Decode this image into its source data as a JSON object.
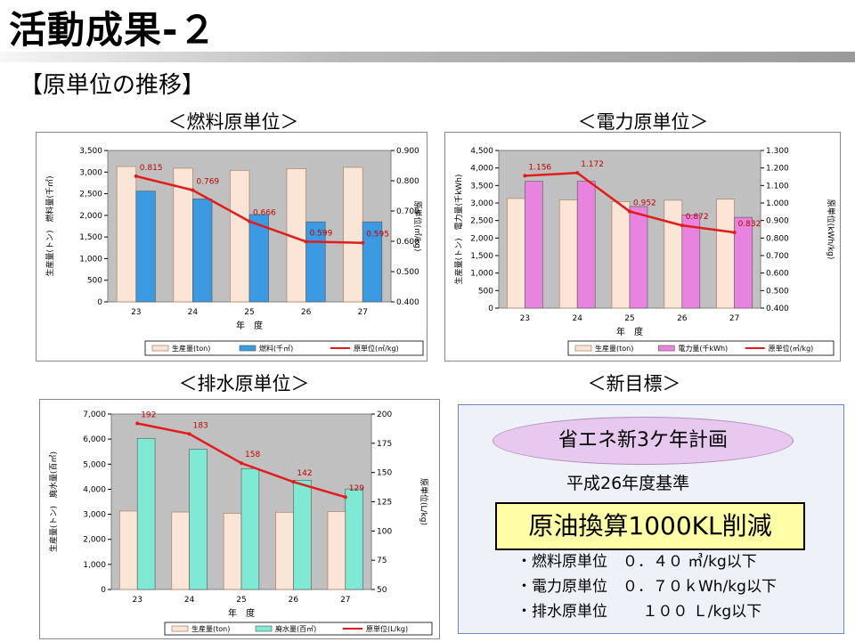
{
  "page": {
    "title": "活動成果-２",
    "subtitle": "【原単位の推移】"
  },
  "headings": {
    "fuel": "＜燃料原単位＞",
    "power": "＜電力原単位＞",
    "water": "＜排水原単位＞",
    "goal": "＜新目標＞"
  },
  "goal": {
    "plan": "省エネ新3ケ年計画",
    "baseline": "平成26年度基準",
    "target": "原油換算1000KL削減",
    "items": [
      "・燃料原単位　０．４０ ㎥/kg以下",
      "・電力原単位　０．７０ｋWh/kg以下",
      "・排水原単位　 　１００ Ｌ/kg以下"
    ]
  },
  "colors": {
    "production_bar": "#fbe5d6",
    "fuel_bar": "#3b9ae1",
    "power_bar": "#e884e0",
    "water_bar": "#7fe9d4",
    "unit_line": "#e31b1b"
  },
  "chart_data": [
    {
      "id": "fuel",
      "type": "bar",
      "categories": [
        "23",
        "24",
        "25",
        "26",
        "27"
      ],
      "xlabel": "年　度",
      "ylabel": "生産量(トン)　燃料量(千㎥)",
      "y2label": "原単位(㎥/kg)",
      "ylim": [
        0,
        3500
      ],
      "yticks": [
        0,
        500,
        1000,
        1500,
        2000,
        2500,
        3000,
        3500
      ],
      "ytick_labels": [
        "0",
        "500",
        "1,000",
        "1,500",
        "2,000",
        "2,500",
        "3,000",
        "3,500"
      ],
      "y2lim": [
        0.4,
        0.9
      ],
      "y2ticks": [
        0.4,
        0.5,
        0.6,
        0.7,
        0.8,
        0.9
      ],
      "y2tick_labels": [
        "0.400",
        "0.500",
        "0.600",
        "0.700",
        "0.800",
        "0.900"
      ],
      "series": [
        {
          "name": "生産量(ton)",
          "kind": "bar",
          "axis": "left",
          "values": [
            3130,
            3090,
            3040,
            3080,
            3110
          ]
        },
        {
          "name": "燃料(千㎥)",
          "kind": "bar",
          "axis": "left",
          "values": [
            2560,
            2380,
            2020,
            1850,
            1850
          ]
        },
        {
          "name": "原単位(㎥/kg)",
          "kind": "line",
          "axis": "right",
          "values": [
            0.815,
            0.769,
            0.666,
            0.599,
            0.595
          ],
          "labels": [
            "0.815",
            "0.769",
            "0.666",
            "0.599",
            "0.595"
          ]
        }
      ],
      "grid": false,
      "legend": "bottom"
    },
    {
      "id": "power",
      "type": "bar",
      "categories": [
        "23",
        "24",
        "25",
        "26",
        "27"
      ],
      "xlabel": "年　度",
      "ylabel": "生産量(トン)　電力量(千kWh)",
      "y2label": "原単位(kWh/kg)",
      "ylim": [
        0,
        4500
      ],
      "yticks": [
        0,
        500,
        1000,
        1500,
        2000,
        2500,
        3000,
        3500,
        4000,
        4500
      ],
      "ytick_labels": [
        "0",
        "500",
        "1,000",
        "1,500",
        "2,000",
        "2,500",
        "3,000",
        "3,500",
        "4,000",
        "4,500"
      ],
      "y2lim": [
        0.4,
        1.3
      ],
      "y2ticks": [
        0.4,
        0.5,
        0.6,
        0.7,
        0.8,
        0.9,
        1.0,
        1.1,
        1.2,
        1.3
      ],
      "y2tick_labels": [
        "0.400",
        "0.500",
        "0.600",
        "0.700",
        "0.800",
        "0.900",
        "1.000",
        "1.100",
        "1.200",
        "1.300"
      ],
      "series": [
        {
          "name": "生産量(ton)",
          "kind": "bar",
          "axis": "left",
          "values": [
            3130,
            3090,
            3040,
            3080,
            3110
          ]
        },
        {
          "name": "電力量(千kWh)",
          "kind": "bar",
          "axis": "left",
          "values": [
            3620,
            3620,
            2900,
            2660,
            2590
          ]
        },
        {
          "name": "原単位(㎥/kg)",
          "kind": "line",
          "axis": "right",
          "values": [
            1.156,
            1.172,
            0.952,
            0.872,
            0.832
          ],
          "labels": [
            "1.156",
            "1.172",
            "0.952",
            "0.872",
            "0.832"
          ]
        }
      ],
      "grid": false,
      "legend": "bottom"
    },
    {
      "id": "water",
      "type": "bar",
      "categories": [
        "23",
        "24",
        "25",
        "26",
        "27"
      ],
      "xlabel": "年　度",
      "ylabel": "生産量(トン)　廃水量(百㎥)",
      "y2label": "原単位(L/kg)",
      "ylim": [
        0,
        7000
      ],
      "yticks": [
        0,
        1000,
        2000,
        3000,
        4000,
        5000,
        6000,
        7000
      ],
      "ytick_labels": [
        "0",
        "1,000",
        "2,000",
        "3,000",
        "4,000",
        "5,000",
        "6,000",
        "7,000"
      ],
      "y2lim": [
        50,
        200
      ],
      "y2ticks": [
        50,
        75,
        100,
        125,
        150,
        175,
        200
      ],
      "y2tick_labels": [
        "50",
        "75",
        "100",
        "125",
        "150",
        "175",
        "200"
      ],
      "series": [
        {
          "name": "生産量(ton)",
          "kind": "bar",
          "axis": "left",
          "values": [
            3130,
            3090,
            3040,
            3080,
            3110
          ]
        },
        {
          "name": "廃水量(百㎥)",
          "kind": "bar",
          "axis": "left",
          "values": [
            6030,
            5600,
            4820,
            4360,
            4010
          ]
        },
        {
          "name": "原単位(L/kg)",
          "kind": "line",
          "axis": "right",
          "values": [
            192,
            183,
            158,
            142,
            129
          ],
          "labels": [
            "192",
            "183",
            "158",
            "142",
            "129"
          ]
        }
      ],
      "grid": false,
      "legend": "bottom"
    }
  ]
}
